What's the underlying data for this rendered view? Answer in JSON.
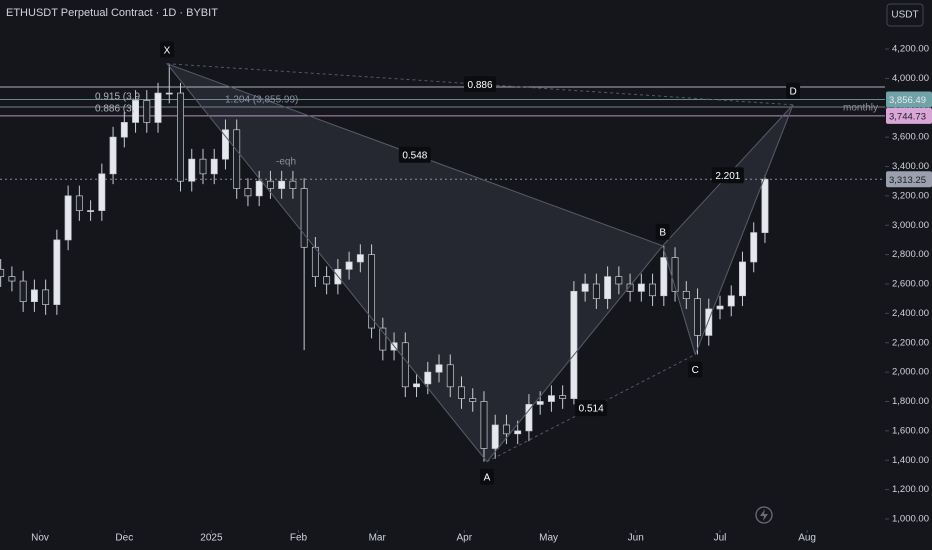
{
  "chart_data": {
    "type": "candlestick",
    "title": "ETHUSDT Perpetual Contract · 1D · BYBIT",
    "currency": "USDT",
    "up_color": "#e6e8ee",
    "down_color": "#1b1e25",
    "open": [
      2700,
      2650,
      2620,
      2480,
      2560,
      2460,
      2900,
      3200,
      3100,
      3100,
      3350,
      3600,
      3700,
      3850,
      3700,
      3900,
      3900,
      3300,
      3450,
      3350,
      3450,
      3650,
      3250,
      3200,
      3300,
      3250,
      3300,
      3250,
      2850,
      2650,
      2600,
      2700,
      2750,
      2800,
      2300,
      2150,
      2200,
      1900,
      1920,
      2000,
      2050,
      1900,
      1820,
      1800,
      1480,
      1640,
      1580,
      1600,
      1780,
      1800,
      1840,
      1820,
      2550,
      2600,
      2500,
      2650,
      2600,
      2550,
      2600,
      2520,
      2780,
      2550,
      2500,
      2250,
      2430,
      2450,
      2520,
      2750,
      2950
    ],
    "high": [
      2770,
      2720,
      2690,
      2630,
      2630,
      2970,
      3270,
      3270,
      3170,
      3420,
      3670,
      3770,
      3920,
      3920,
      3970,
      4100,
      3970,
      3520,
      3520,
      3520,
      3720,
      3720,
      3320,
      3370,
      3370,
      3370,
      3370,
      3320,
      2920,
      2720,
      2770,
      2820,
      2870,
      2870,
      2370,
      2270,
      2270,
      1990,
      2070,
      2120,
      2120,
      1970,
      1890,
      1870,
      1710,
      1710,
      1670,
      1850,
      1870,
      1910,
      1910,
      2620,
      2670,
      2670,
      2720,
      2720,
      2670,
      2670,
      2670,
      2860,
      2850,
      2620,
      2570,
      2500,
      2520,
      2590,
      2820,
      3020,
      3340
    ],
    "low": [
      2580,
      2550,
      2410,
      2410,
      2390,
      2390,
      2830,
      3030,
      3030,
      3030,
      3280,
      3530,
      3630,
      3630,
      3630,
      3830,
      3230,
      3230,
      3280,
      3280,
      3380,
      3180,
      3130,
      3130,
      3180,
      3180,
      3180,
      2150,
      2580,
      2530,
      2530,
      2630,
      2680,
      2230,
      2080,
      2080,
      1830,
      1830,
      1850,
      1930,
      1830,
      1750,
      1730,
      1390,
      1410,
      1510,
      1510,
      1530,
      1710,
      1730,
      1750,
      1780,
      2480,
      2430,
      2430,
      2530,
      2480,
      2480,
      2450,
      2450,
      2480,
      2430,
      2120,
      2180,
      2360,
      2380,
      2450,
      2680,
      2880
    ],
    "close": [
      2650,
      2620,
      2480,
      2560,
      2460,
      2900,
      3200,
      3100,
      3100,
      3350,
      3600,
      3700,
      3850,
      3700,
      3900,
      3900,
      3300,
      3450,
      3350,
      3450,
      3650,
      3250,
      3200,
      3300,
      3250,
      3300,
      3250,
      2850,
      2650,
      2600,
      2700,
      2750,
      2800,
      2300,
      2150,
      2200,
      1900,
      1920,
      2000,
      2050,
      1900,
      1820,
      1800,
      1480,
      1640,
      1580,
      1600,
      1780,
      1800,
      1840,
      1820,
      2550,
      2600,
      2500,
      2650,
      2600,
      2550,
      2600,
      2520,
      2780,
      2550,
      2500,
      2250,
      2430,
      2450,
      2520,
      2750,
      2950,
      3313.25
    ],
    "xlim": [
      -0.06,
      78.68
    ],
    "xticks": [
      {
        "value": 3.5,
        "label": "Nov"
      },
      {
        "value": 11,
        "label": "Dec"
      },
      {
        "value": 18.75,
        "label": "2025"
      },
      {
        "value": 26.5,
        "label": "Feb"
      },
      {
        "value": 33.5,
        "label": "Mar"
      },
      {
        "value": 41.25,
        "label": "Apr"
      },
      {
        "value": 48.75,
        "label": "May"
      },
      {
        "value": 56.5,
        "label": "Jun"
      },
      {
        "value": 64,
        "label": "Jul"
      },
      {
        "value": 71.75,
        "label": "Aug"
      }
    ],
    "ylim": [
      925.1,
      4533.6
    ],
    "yticks": [
      {
        "value": 1000,
        "label": "1,000.00"
      },
      {
        "value": 1200,
        "label": "1,200.00"
      },
      {
        "value": 1400,
        "label": "1,400.00"
      },
      {
        "value": 1600,
        "label": "1,600.00"
      },
      {
        "value": 1800,
        "label": "1,800.00"
      },
      {
        "value": 2000,
        "label": "2,000.00"
      },
      {
        "value": 2200,
        "label": "2,200.00"
      },
      {
        "value": 2400,
        "label": "2,400.00"
      },
      {
        "value": 2600,
        "label": "2,600.00"
      },
      {
        "value": 2800,
        "label": "2,800.00"
      },
      {
        "value": 3000,
        "label": "3,000.00"
      },
      {
        "value": 3200,
        "label": "3,200.00"
      },
      {
        "value": 3400,
        "label": "3,400.00"
      },
      {
        "value": 3600,
        "label": "3,600.00"
      },
      {
        "value": 3800,
        "label": "3,800.00"
      },
      {
        "value": 4000,
        "label": "4,000.00"
      },
      {
        "value": 4200,
        "label": "4,200.00"
      }
    ],
    "levels": [
      {
        "value": 3941,
        "color": "#c8ccd6",
        "dash": false
      },
      {
        "value": 3856.49,
        "label": "3,856.49",
        "color": "#6fa3a8",
        "dash": false,
        "text": "#e6e8ee"
      },
      {
        "value": 3805,
        "color": "#8a8fa0",
        "dash": false
      },
      {
        "value": 3744.73,
        "label": "3,744.73",
        "color": "#d9a6d8",
        "dash": false,
        "text": "#1b1e25"
      },
      {
        "value": 3313.25,
        "label": "3,313.25",
        "color": "#9aa0ad",
        "dash": true,
        "text": "#1b1e25"
      }
    ],
    "pattern": {
      "points": [
        {
          "label": "X",
          "x": 14.8,
          "y": 4100
        },
        {
          "label": "A",
          "x": 43.27,
          "y": 1390
        },
        {
          "label": "B",
          "x": 58.9,
          "y": 2860
        },
        {
          "label": "C",
          "x": 61.8,
          "y": 2120
        },
        {
          "label": "D",
          "x": 70.5,
          "y": 3820
        }
      ],
      "ratios": [
        {
          "label": "0.886",
          "from": 0,
          "to": 4
        },
        {
          "label": "0.548",
          "from": 0,
          "to": 2
        },
        {
          "label": "0.514",
          "from": 1,
          "to": 3
        },
        {
          "label": "2.201",
          "from": 2,
          "to": 4
        }
      ]
    },
    "annotations": [
      "0.915 (3,9",
      "0.886 (3,",
      "1.204 (3,855.99)",
      "-eqh",
      "monthly"
    ]
  }
}
